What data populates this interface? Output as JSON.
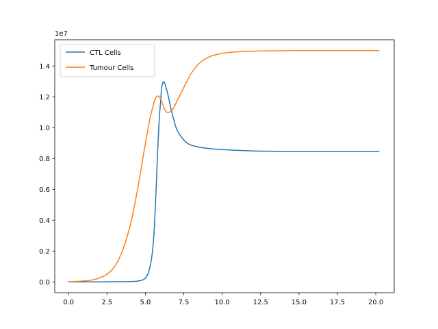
{
  "chart_data": {
    "type": "line",
    "title": "",
    "xlabel": "",
    "ylabel": "",
    "y_offset_label": "1e7",
    "xlim": [
      -0.9,
      21.2
    ],
    "ylim": [
      -0.07,
      1.57
    ],
    "x_ticks": [
      0.0,
      2.5,
      5.0,
      7.5,
      10.0,
      12.5,
      15.0,
      17.5,
      20.0
    ],
    "x_tick_labels": [
      "0.0",
      "2.5",
      "5.0",
      "7.5",
      "10.0",
      "12.5",
      "15.0",
      "17.5",
      "20.0"
    ],
    "y_ticks": [
      0.0,
      0.2,
      0.4,
      0.6,
      0.8,
      1.0,
      1.2,
      1.4
    ],
    "y_tick_labels": [
      "0.0",
      "0.2",
      "0.4",
      "0.6",
      "0.8",
      "1.0",
      "1.2",
      "1.4"
    ],
    "grid": false,
    "legend_position": "top-left",
    "series": [
      {
        "name": "CTL Cells",
        "color": "#1f77b4",
        "x": [
          0,
          1,
          2,
          3,
          3.5,
          4,
          4.5,
          4.8,
          5.0,
          5.2,
          5.4,
          5.55,
          5.7,
          5.8,
          5.9,
          6.0,
          6.05,
          6.15,
          6.25,
          6.35,
          6.5,
          6.65,
          6.8,
          7.0,
          7.2,
          7.5,
          7.8,
          8.2,
          8.7,
          9.3,
          10,
          11,
          12,
          13,
          14,
          15,
          16,
          17,
          18,
          19,
          20.2
        ],
        "y": [
          0.0,
          0.0,
          0.0,
          0.001,
          0.001,
          0.002,
          0.005,
          0.012,
          0.025,
          0.06,
          0.15,
          0.3,
          0.6,
          0.85,
          1.05,
          1.18,
          1.25,
          1.295,
          1.29,
          1.26,
          1.2,
          1.13,
          1.07,
          1.0,
          0.96,
          0.92,
          0.895,
          0.88,
          0.87,
          0.863,
          0.858,
          0.853,
          0.849,
          0.847,
          0.846,
          0.845,
          0.845,
          0.845,
          0.845,
          0.845,
          0.845
        ]
      },
      {
        "name": "Tumour Cells",
        "color": "#ff7f0e",
        "x": [
          0,
          0.5,
          1,
          1.5,
          2,
          2.5,
          3,
          3.5,
          4,
          4.3,
          4.6,
          4.9,
          5.1,
          5.3,
          5.5,
          5.65,
          5.8,
          5.95,
          6.1,
          6.25,
          6.4,
          6.55,
          6.7,
          6.9,
          7.1,
          7.4,
          7.7,
          8.0,
          8.4,
          8.8,
          9.3,
          9.8,
          10.4,
          11,
          12,
          13,
          14,
          15,
          16,
          17,
          18,
          19,
          20.2
        ],
        "y": [
          0.001,
          0.003,
          0.006,
          0.012,
          0.025,
          0.05,
          0.1,
          0.2,
          0.36,
          0.5,
          0.66,
          0.84,
          0.95,
          1.06,
          1.14,
          1.19,
          1.205,
          1.195,
          1.16,
          1.12,
          1.1,
          1.1,
          1.11,
          1.14,
          1.18,
          1.24,
          1.3,
          1.355,
          1.405,
          1.44,
          1.465,
          1.478,
          1.487,
          1.492,
          1.496,
          1.498,
          1.499,
          1.5,
          1.5,
          1.5,
          1.5,
          1.5,
          1.5
        ]
      }
    ]
  }
}
